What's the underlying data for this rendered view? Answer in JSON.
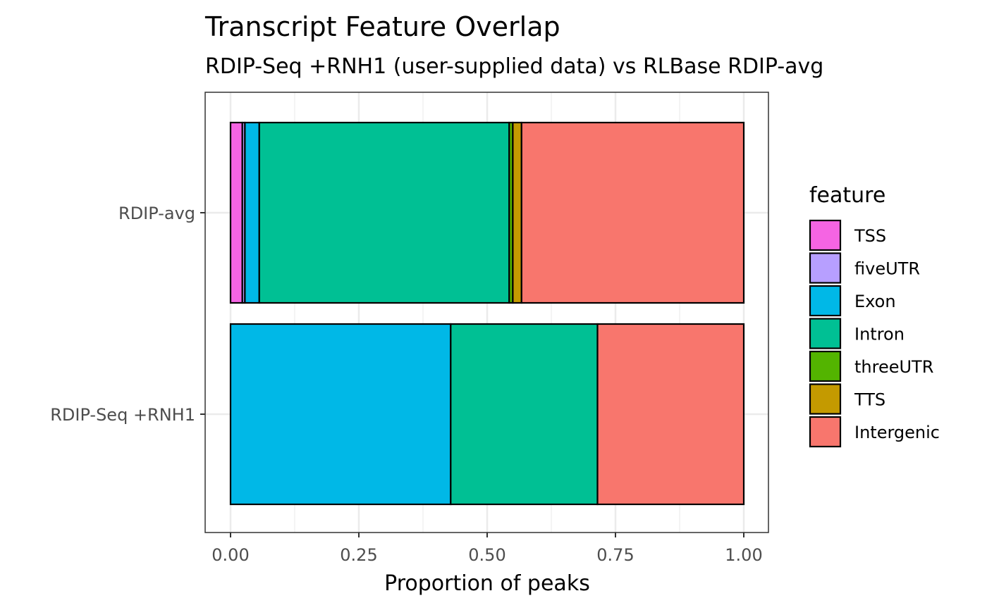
{
  "chart_data": {
    "type": "bar",
    "orientation": "horizontal",
    "stacked": true,
    "title": "Transcript Feature Overlap",
    "subtitle": "RDIP-Seq +RNH1 (user-supplied data) vs RLBase RDIP-avg",
    "xlabel": "Proportion of peaks",
    "ylabel": "",
    "xlim": [
      0,
      1
    ],
    "x_ticks": [
      "0.00",
      "0.25",
      "0.50",
      "0.75",
      "1.00"
    ],
    "categories": [
      "RDIP-avg",
      "RDIP-Seq +RNH1"
    ],
    "legend_title": "feature",
    "legend_position": "right",
    "grid": true,
    "series": [
      {
        "name": "TSS",
        "color": "#F564E3",
        "values": [
          0.023,
          0.0
        ]
      },
      {
        "name": "fiveUTR",
        "color": "#B79FFF",
        "values": [
          0.005,
          0.0
        ]
      },
      {
        "name": "Exon",
        "color": "#00B8E7",
        "values": [
          0.028,
          0.429
        ]
      },
      {
        "name": "Intron",
        "color": "#00C094",
        "values": [
          0.487,
          0.286
        ]
      },
      {
        "name": "threeUTR",
        "color": "#53B400",
        "values": [
          0.007,
          0.0
        ]
      },
      {
        "name": "TTS",
        "color": "#C49A00",
        "values": [
          0.017,
          0.0
        ]
      },
      {
        "name": "Intergenic",
        "color": "#F8766D",
        "values": [
          0.433,
          0.285
        ]
      }
    ]
  }
}
